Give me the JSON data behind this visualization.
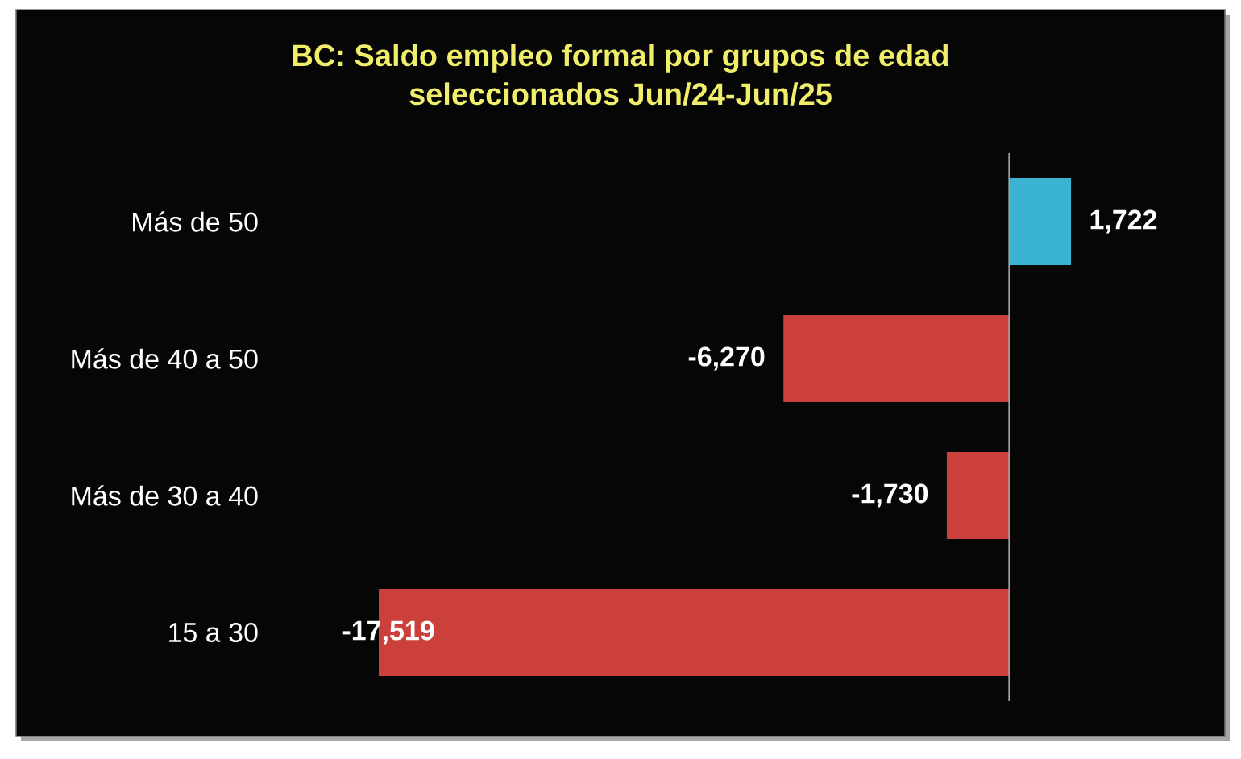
{
  "chart_data": {
    "type": "bar",
    "orientation": "horizontal",
    "title": "BC: Saldo empleo formal por grupos de edad seleccionados Jun/24-Jun/25",
    "categories": [
      "Más de 50",
      "Más de 40 a 50",
      "Más de 30 a 40",
      "15 a 30"
    ],
    "values": [
      1722,
      -6270,
      -1730,
      -17519
    ],
    "colors": [
      "#3ab4d2",
      "#cc403c",
      "#cc403c",
      "#cc403c"
    ],
    "value_labels": [
      "1,722",
      "-6,270",
      "-1,730",
      "-17,519"
    ],
    "tick_labels": "y"
  }
}
